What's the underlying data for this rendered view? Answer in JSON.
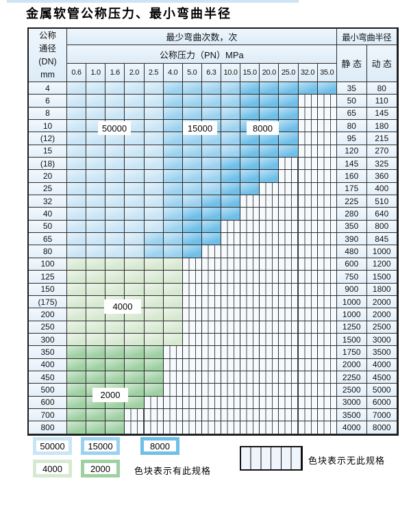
{
  "title": "金属软管公称压力、最小弯曲半径",
  "table": {
    "header": {
      "dn_lines": [
        "公称",
        "通径",
        "(DN)",
        "mm"
      ],
      "cycles_title": "最少弯曲次数，次",
      "pressure_title": "公称压力（PN）MPa",
      "radius_title": "最小弯曲半径",
      "static_label": "静 态",
      "dynamic_label": "动 态",
      "pressures": [
        "0.6",
        "1.0",
        "1.6",
        "2.0",
        "2.5",
        "4.0",
        "5.0",
        "6.3",
        "10.0",
        "15.0",
        "20.0",
        "25.0",
        "32.0",
        "35.0"
      ]
    },
    "cell_legend": {
      "L": "blue-light 50000 cycles",
      "M": "blue-mid 15000 cycles",
      "D": "blue-dark 8000 cycles",
      "g": "green-light 4000 cycles",
      "G": "green-mid 2000 cycles",
      "x": "striped no-spec"
    },
    "rows": [
      {
        "dn": "4",
        "cells": "LLLLLMMMMDDDDD",
        "static": "35",
        "dynamic": "80"
      },
      {
        "dn": "6",
        "cells": "LLLLLMMMMDDDxx",
        "static": "50",
        "dynamic": "110"
      },
      {
        "dn": "8",
        "cells": "LLLLLMMMMDDDxx",
        "static": "65",
        "dynamic": "145"
      },
      {
        "dn": "10",
        "cells": "LLLLLMMMMDDDxx",
        "static": "80",
        "dynamic": "180"
      },
      {
        "dn": "(12)",
        "cells": "LLLLLMMMMDDDxx",
        "static": "95",
        "dynamic": "215"
      },
      {
        "dn": "15",
        "cells": "LLLLLMMMMDDDxx",
        "static": "120",
        "dynamic": "270"
      },
      {
        "dn": "(18)",
        "cells": "LLLLLMMMDDDxxx",
        "static": "145",
        "dynamic": "325"
      },
      {
        "dn": "20",
        "cells": "LLLLLMMMDDDxxx",
        "static": "160",
        "dynamic": "360"
      },
      {
        "dn": "25",
        "cells": "LLLLLMMMDDxxxx",
        "static": "175",
        "dynamic": "400"
      },
      {
        "dn": "32",
        "cells": "LLLLLMMDDxxxxx",
        "static": "225",
        "dynamic": "510"
      },
      {
        "dn": "40",
        "cells": "LLLLLMDDDxxxxx",
        "static": "280",
        "dynamic": "640"
      },
      {
        "dn": "50",
        "cells": "LLLLLMDDxxxxxx",
        "static": "350",
        "dynamic": "800"
      },
      {
        "dn": "65",
        "cells": "LLLLMMDDxxxxxx",
        "static": "390",
        "dynamic": "845"
      },
      {
        "dn": "80",
        "cells": "LLLLMMDxxxxxxx",
        "static": "480",
        "dynamic": "1000"
      },
      {
        "dn": "100",
        "cells": "ggggggxxxxxxxx",
        "static": "600",
        "dynamic": "1200"
      },
      {
        "dn": "125",
        "cells": "ggggggxxxxxxxx",
        "static": "750",
        "dynamic": "1500"
      },
      {
        "dn": "150",
        "cells": "ggggggxxxxxxxx",
        "static": "900",
        "dynamic": "1800"
      },
      {
        "dn": "(175)",
        "cells": "ggggggxxxxxxxx",
        "static": "1000",
        "dynamic": "2000"
      },
      {
        "dn": "200",
        "cells": "ggggggxxxxxxxx",
        "static": "1000",
        "dynamic": "2000"
      },
      {
        "dn": "250",
        "cells": "ggggggxxxxxxxx",
        "static": "1250",
        "dynamic": "2500"
      },
      {
        "dn": "300",
        "cells": "ggggggxxxxxxxx",
        "static": "1500",
        "dynamic": "3000"
      },
      {
        "dn": "350",
        "cells": "GGGGGxxxxxxxxx",
        "static": "1750",
        "dynamic": "3500"
      },
      {
        "dn": "400",
        "cells": "GGGGGxxxxxxxxx",
        "static": "2000",
        "dynamic": "4000"
      },
      {
        "dn": "450",
        "cells": "GGGGGxxxxxxxxx",
        "static": "2250",
        "dynamic": "4500"
      },
      {
        "dn": "500",
        "cells": "GGGGGxxxxxxxxx",
        "static": "2500",
        "dynamic": "5000"
      },
      {
        "dn": "600",
        "cells": "GGGGxxxxxxxxxx",
        "static": "3000",
        "dynamic": "6000"
      },
      {
        "dn": "700",
        "cells": "GGGxxxxxxxxxxx",
        "static": "3500",
        "dynamic": "7000"
      },
      {
        "dn": "800",
        "cells": "GGGxxxxxxxxxxx",
        "static": "4000",
        "dynamic": "8000"
      }
    ]
  },
  "region_labels": {
    "l50000": "50000",
    "l15000": "15000",
    "l8000": "8000",
    "l4000": "4000",
    "l2000": "2000"
  },
  "legend": {
    "items": [
      {
        "value": "50000",
        "color": "#c9e5f6"
      },
      {
        "value": "15000",
        "color": "#9cd2f0"
      },
      {
        "value": "8000",
        "color": "#6fbfe9"
      },
      {
        "value": "4000",
        "color": "#d7e9d1"
      },
      {
        "value": "2000",
        "color": "#9ed0a2"
      }
    ],
    "has_spec_note": "色块表示有此规格",
    "no_spec_note": "色块表示无此规格"
  },
  "colors": {
    "blue_light": "#c9e5f6",
    "blue_mid": "#9cd2f0",
    "blue_dark": "#6fbfe9",
    "green_light": "#d7e9d1",
    "green_mid": "#9ed0a2",
    "grid_line": "#2b2b2b",
    "stripe_bg": "#f6fafd",
    "header_bg": "#e4eff9",
    "accent_bar": "#cfe4f3"
  }
}
